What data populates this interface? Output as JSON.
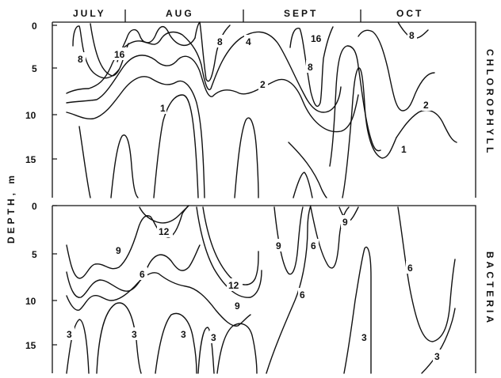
{
  "chart_data": [
    {
      "type": "contour",
      "title": "CHLOROPHYLL",
      "xlabel": "",
      "ylabel": "DEPTH, m",
      "months": [
        "JULY",
        "AUG",
        "SEPT",
        "OCT"
      ],
      "y_ticks": [
        "0",
        "5",
        "10",
        "15"
      ],
      "ylim": [
        19,
        0
      ],
      "contour_labels": [
        "8",
        "16",
        "8",
        "4",
        "16",
        "8",
        "8",
        "2",
        "1",
        "2",
        "1"
      ]
    },
    {
      "type": "contour",
      "title": "BACTERIA",
      "xlabel": "",
      "ylabel": "DEPTH, m",
      "months": [
        "JULY",
        "AUG",
        "SEPT",
        "OCT"
      ],
      "y_ticks": [
        "0",
        "5",
        "10",
        "15"
      ],
      "ylim": [
        19,
        0
      ],
      "contour_labels": [
        "12",
        "9",
        "6",
        "12",
        "9",
        "9",
        "6",
        "9",
        "6",
        "6",
        "3",
        "3",
        "3",
        "3",
        "3",
        "3"
      ]
    }
  ],
  "labels": {
    "ylabel": "DEPTH, m",
    "top_title": "CHLOROPHYLL",
    "bottom_title": "BACTERIA"
  }
}
